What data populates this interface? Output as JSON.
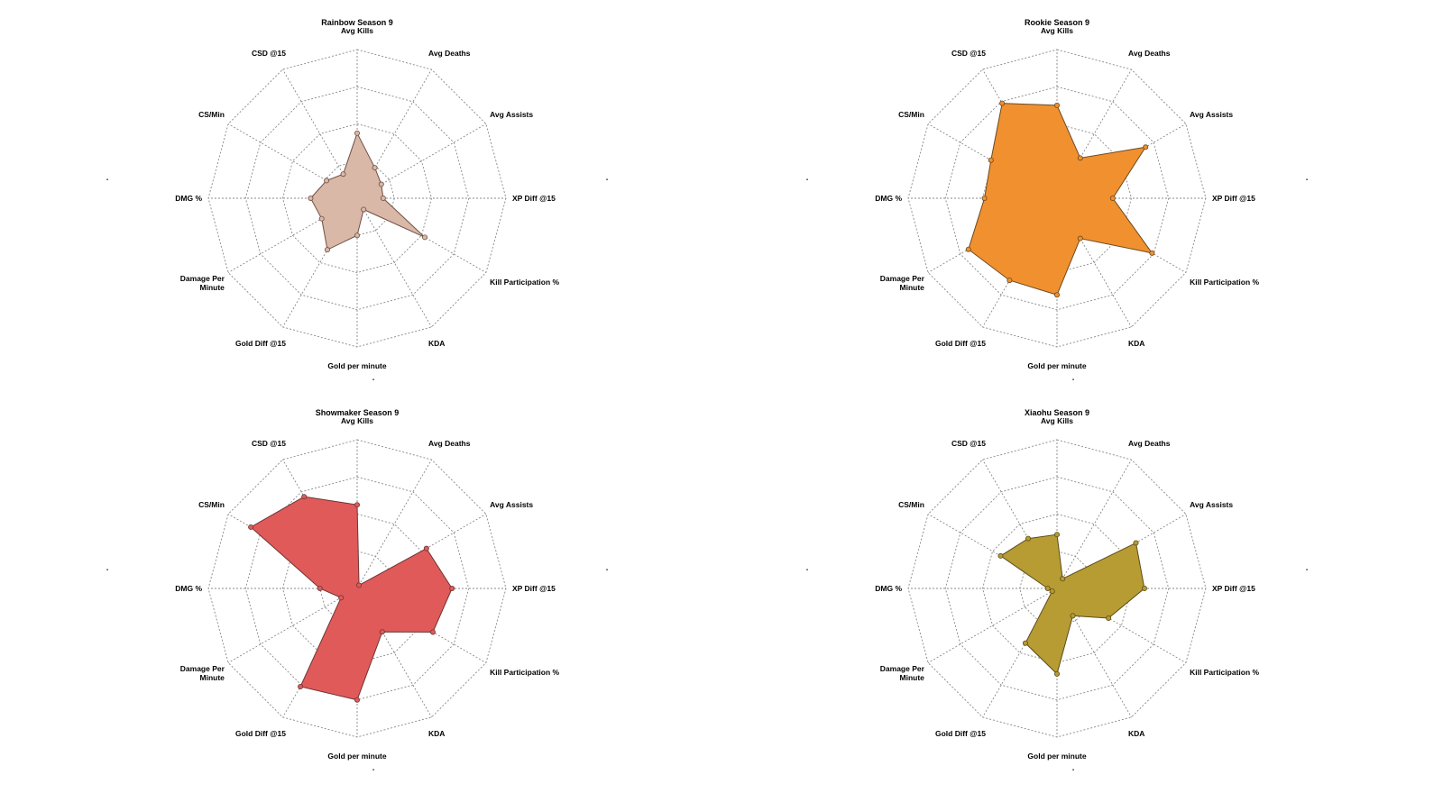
{
  "chart_data": [
    {
      "type": "radar",
      "title": "Rainbow Season 9",
      "axes": [
        "Avg Kills",
        "Avg Deaths",
        "Avg Assists",
        "XP Diff @15",
        "Kill Participation %",
        "KDA",
        "Gold per minute",
        "Gold Diff @15",
        "Damage Per\nMinute",
        "DMG %",
        "CS/Min",
        "CSD @15"
      ],
      "rings": 4,
      "range": [
        0,
        4
      ],
      "stray_marks": [
        "▪",
        "▪",
        "▪"
      ],
      "fill_color": "#d9b8a8",
      "stroke_color": "#6e4f44",
      "values": [
        1.75,
        0.95,
        0.75,
        0.7,
        2.1,
        0.35,
        1.0,
        1.6,
        1.1,
        1.25,
        0.95,
        0.75
      ]
    },
    {
      "type": "radar",
      "title": "Rookie Season 9",
      "axes": [
        "Avg Kills",
        "Avg Deaths",
        "Avg Assists",
        "XP Diff @15",
        "Kill Participation %",
        "KDA",
        "Gold per minute",
        "Gold Diff @15",
        "Damage Per\nMinute",
        "DMG %",
        "CS/Min",
        "CSD @15"
      ],
      "rings": 4,
      "range": [
        0,
        4
      ],
      "stray_marks": [
        "▪",
        "▪",
        "▪"
      ],
      "fill_color": "#f0902f",
      "stroke_color": "#6b4a22",
      "values": [
        2.5,
        1.25,
        2.75,
        1.5,
        2.95,
        1.25,
        2.6,
        2.55,
        2.75,
        1.95,
        2.05,
        2.95
      ]
    },
    {
      "type": "radar",
      "title": "Showmaker Season 9",
      "axes": [
        "Avg Kills",
        "Avg Deaths",
        "Avg Assists",
        "XP Diff @15",
        "Kill Participation %",
        "KDA",
        "Gold per minute",
        "Gold Diff @15",
        "Damage Per\nMinute",
        "DMG %",
        "CS/Min",
        "CSD @15"
      ],
      "rings": 4,
      "range": [
        0,
        4
      ],
      "stray_marks": [
        "▪",
        "▪",
        "▪"
      ],
      "fill_color": "#e05a5a",
      "stroke_color": "#6e3434",
      "values": [
        2.25,
        0.1,
        2.15,
        2.55,
        2.35,
        1.35,
        3.0,
        3.05,
        0.5,
        1.0,
        3.3,
        2.85
      ]
    },
    {
      "type": "radar",
      "title": "Xiaohu Season 9",
      "axes": [
        "Avg Kills",
        "Avg Deaths",
        "Avg Assists",
        "XP Diff @15",
        "Kill Participation %",
        "KDA",
        "Gold per minute",
        "Gold Diff @15",
        "Damage Per\nMinute",
        "DMG %",
        "CS/Min",
        "CSD @15"
      ],
      "rings": 4,
      "range": [
        0,
        4
      ],
      "stray_marks": [
        "▪",
        "▪",
        "▪"
      ],
      "fill_color": "#b79b33",
      "stroke_color": "#5b4c1a",
      "values": [
        1.45,
        0.3,
        2.45,
        2.35,
        1.6,
        0.85,
        2.3,
        1.7,
        0.15,
        0.25,
        1.75,
        1.55
      ]
    }
  ]
}
